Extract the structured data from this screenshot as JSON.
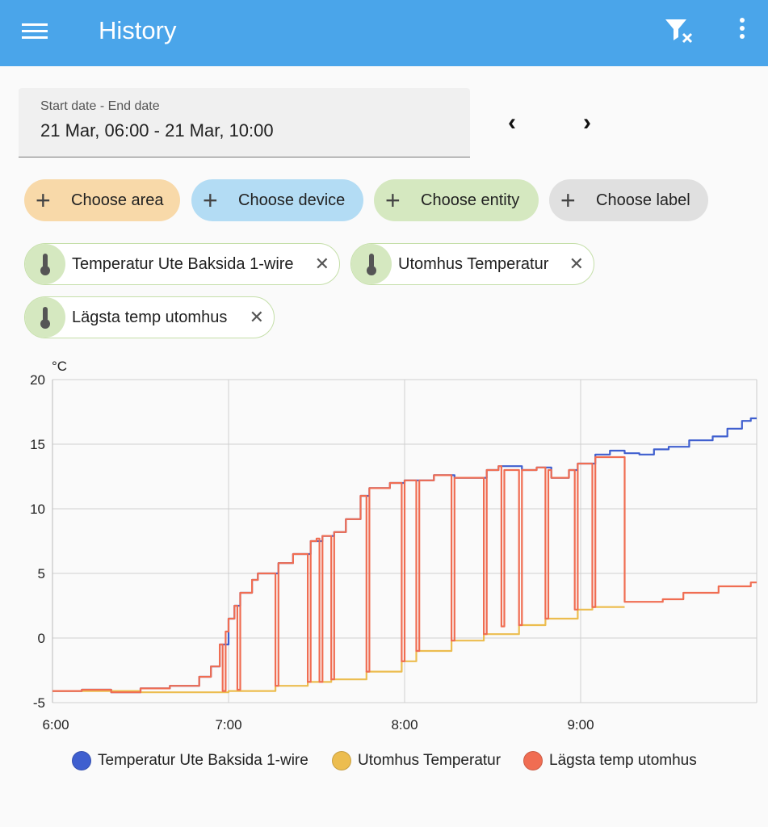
{
  "header": {
    "title": "History",
    "menu_icon": "hamburger-menu-icon",
    "filter_icon": "filter-remove-icon",
    "more_icon": "dots-vertical-icon"
  },
  "date_picker": {
    "label": "Start date - End date",
    "value": "21 Mar, 06:00 - 21 Mar, 10:00",
    "prev": "‹",
    "next": "›"
  },
  "pickers": [
    {
      "label": "Choose area",
      "color": "#f8d9a9"
    },
    {
      "label": "Choose device",
      "color": "#b3dcf4"
    },
    {
      "label": "Choose entity",
      "color": "#d5e8c0"
    },
    {
      "label": "Choose label",
      "color": "#e0e0e0"
    }
  ],
  "selected_entities": [
    {
      "label": "Temperatur Ute Baksida 1-wire",
      "icon": "thermometer-icon"
    },
    {
      "label": "Utomhus Temperatur",
      "icon": "thermometer-icon"
    },
    {
      "label": "Lägsta temp utomhus",
      "icon": "thermometer-icon"
    }
  ],
  "chart_data": {
    "type": "line",
    "step": true,
    "ylabel": "°C",
    "ylim": [
      -5,
      20
    ],
    "yticks": [
      "20",
      "15",
      "10",
      "5",
      "0",
      "-5"
    ],
    "xlim": [
      "6:00",
      "10:00"
    ],
    "xticks": [
      "6:00",
      "7:00",
      "8:00",
      "9:00"
    ],
    "grid": true,
    "legend": "bottom",
    "series": [
      {
        "name": "Temperatur Ute Baksida 1-wire",
        "color": "#3f5fcf",
        "points": [
          [
            "6:00",
            -4.1
          ],
          [
            "6:10",
            -4.0
          ],
          [
            "6:20",
            -4.2
          ],
          [
            "6:30",
            -3.9
          ],
          [
            "6:40",
            -3.7
          ],
          [
            "6:50",
            -3.0
          ],
          [
            "6:54",
            -2.2
          ],
          [
            "6:57",
            -0.5
          ],
          [
            "7:00",
            1.5
          ],
          [
            "7:02",
            2.5
          ],
          [
            "7:04",
            3.5
          ],
          [
            "7:08",
            4.5
          ],
          [
            "7:10",
            5.0
          ],
          [
            "7:17",
            5.8
          ],
          [
            "7:22",
            6.5
          ],
          [
            "7:28",
            7.5
          ],
          [
            "7:32",
            7.9
          ],
          [
            "7:36",
            8.2
          ],
          [
            "7:40",
            9.2
          ],
          [
            "7:45",
            11.0
          ],
          [
            "7:48",
            11.6
          ],
          [
            "7:55",
            12.0
          ],
          [
            "8:00",
            12.2
          ],
          [
            "8:10",
            12.6
          ],
          [
            "8:17",
            12.4
          ],
          [
            "8:28",
            13.0
          ],
          [
            "8:32",
            13.3
          ],
          [
            "8:40",
            13.0
          ],
          [
            "8:45",
            13.2
          ],
          [
            "8:50",
            12.4
          ],
          [
            "8:56",
            13.0
          ],
          [
            "8:59",
            13.5
          ],
          [
            "9:05",
            14.2
          ],
          [
            "9:10",
            14.5
          ],
          [
            "9:15",
            14.3
          ],
          [
            "9:20",
            14.2
          ],
          [
            "9:25",
            14.6
          ],
          [
            "9:30",
            14.8
          ],
          [
            "9:37",
            15.3
          ],
          [
            "9:45",
            15.6
          ],
          [
            "9:50",
            16.2
          ],
          [
            "9:55",
            16.8
          ],
          [
            "9:58",
            17.0
          ],
          [
            "10:00",
            17.0
          ]
        ]
      },
      {
        "name": "Utomhus Temperatur",
        "color": "#ecbd4f",
        "points": [
          [
            "6:00",
            -4.1
          ],
          [
            "6:30",
            -4.2
          ],
          [
            "7:00",
            -4.1
          ],
          [
            "7:16",
            -3.7
          ],
          [
            "7:27",
            -3.4
          ],
          [
            "7:35",
            -3.2
          ],
          [
            "7:47",
            -2.6
          ],
          [
            "7:59",
            -1.8
          ],
          [
            "8:04",
            -1.0
          ],
          [
            "8:16",
            -0.2
          ],
          [
            "8:27",
            0.3
          ],
          [
            "8:39",
            1.0
          ],
          [
            "8:48",
            1.5
          ],
          [
            "8:59",
            2.2
          ],
          [
            "9:04",
            2.4
          ],
          [
            "9:15",
            2.4
          ]
        ]
      },
      {
        "name": "Lägsta temp utomhus",
        "color": "#f06d52",
        "points": [
          [
            "6:00",
            -4.1
          ],
          [
            "6:10",
            -4.0
          ],
          [
            "6:20",
            -4.2
          ],
          [
            "6:30",
            -3.9
          ],
          [
            "6:40",
            -3.7
          ],
          [
            "6:50",
            -3.0
          ],
          [
            "6:54",
            -2.2
          ],
          [
            "6:57",
            -0.5
          ],
          [
            "6:58",
            -4.1
          ],
          [
            "6:59",
            0.5
          ],
          [
            "7:00",
            1.5
          ],
          [
            "7:02",
            2.5
          ],
          [
            "7:03",
            -4.0
          ],
          [
            "7:04",
            3.5
          ],
          [
            "7:08",
            4.5
          ],
          [
            "7:10",
            5.0
          ],
          [
            "7:16",
            -3.7
          ],
          [
            "7:17",
            5.8
          ],
          [
            "7:22",
            6.5
          ],
          [
            "7:27",
            -3.4
          ],
          [
            "7:28",
            7.5
          ],
          [
            "7:30",
            7.7
          ],
          [
            "7:31",
            -3.4
          ],
          [
            "7:32",
            7.9
          ],
          [
            "7:35",
            -3.2
          ],
          [
            "7:36",
            8.2
          ],
          [
            "7:40",
            9.2
          ],
          [
            "7:45",
            11.0
          ],
          [
            "7:47",
            -2.6
          ],
          [
            "7:48",
            11.6
          ],
          [
            "7:55",
            12.0
          ],
          [
            "7:59",
            -1.8
          ],
          [
            "8:00",
            12.2
          ],
          [
            "8:04",
            -1.0
          ],
          [
            "8:05",
            12.2
          ],
          [
            "8:10",
            12.6
          ],
          [
            "8:16",
            -0.2
          ],
          [
            "8:17",
            12.4
          ],
          [
            "8:27",
            0.3
          ],
          [
            "8:28",
            13.0
          ],
          [
            "8:32",
            13.3
          ],
          [
            "8:33",
            0.9
          ],
          [
            "8:34",
            13.0
          ],
          [
            "8:39",
            1.0
          ],
          [
            "8:40",
            13.0
          ],
          [
            "8:45",
            13.2
          ],
          [
            "8:48",
            1.5
          ],
          [
            "8:49",
            13.0
          ],
          [
            "8:50",
            12.4
          ],
          [
            "8:56",
            13.0
          ],
          [
            "8:58",
            2.2
          ],
          [
            "8:59",
            13.5
          ],
          [
            "9:04",
            2.4
          ],
          [
            "9:05",
            14.0
          ],
          [
            "9:15",
            2.8
          ],
          [
            "9:28",
            3.0
          ],
          [
            "9:35",
            3.5
          ],
          [
            "9:47",
            4.0
          ],
          [
            "9:58",
            4.3
          ],
          [
            "10:00",
            4.3
          ]
        ]
      }
    ]
  }
}
